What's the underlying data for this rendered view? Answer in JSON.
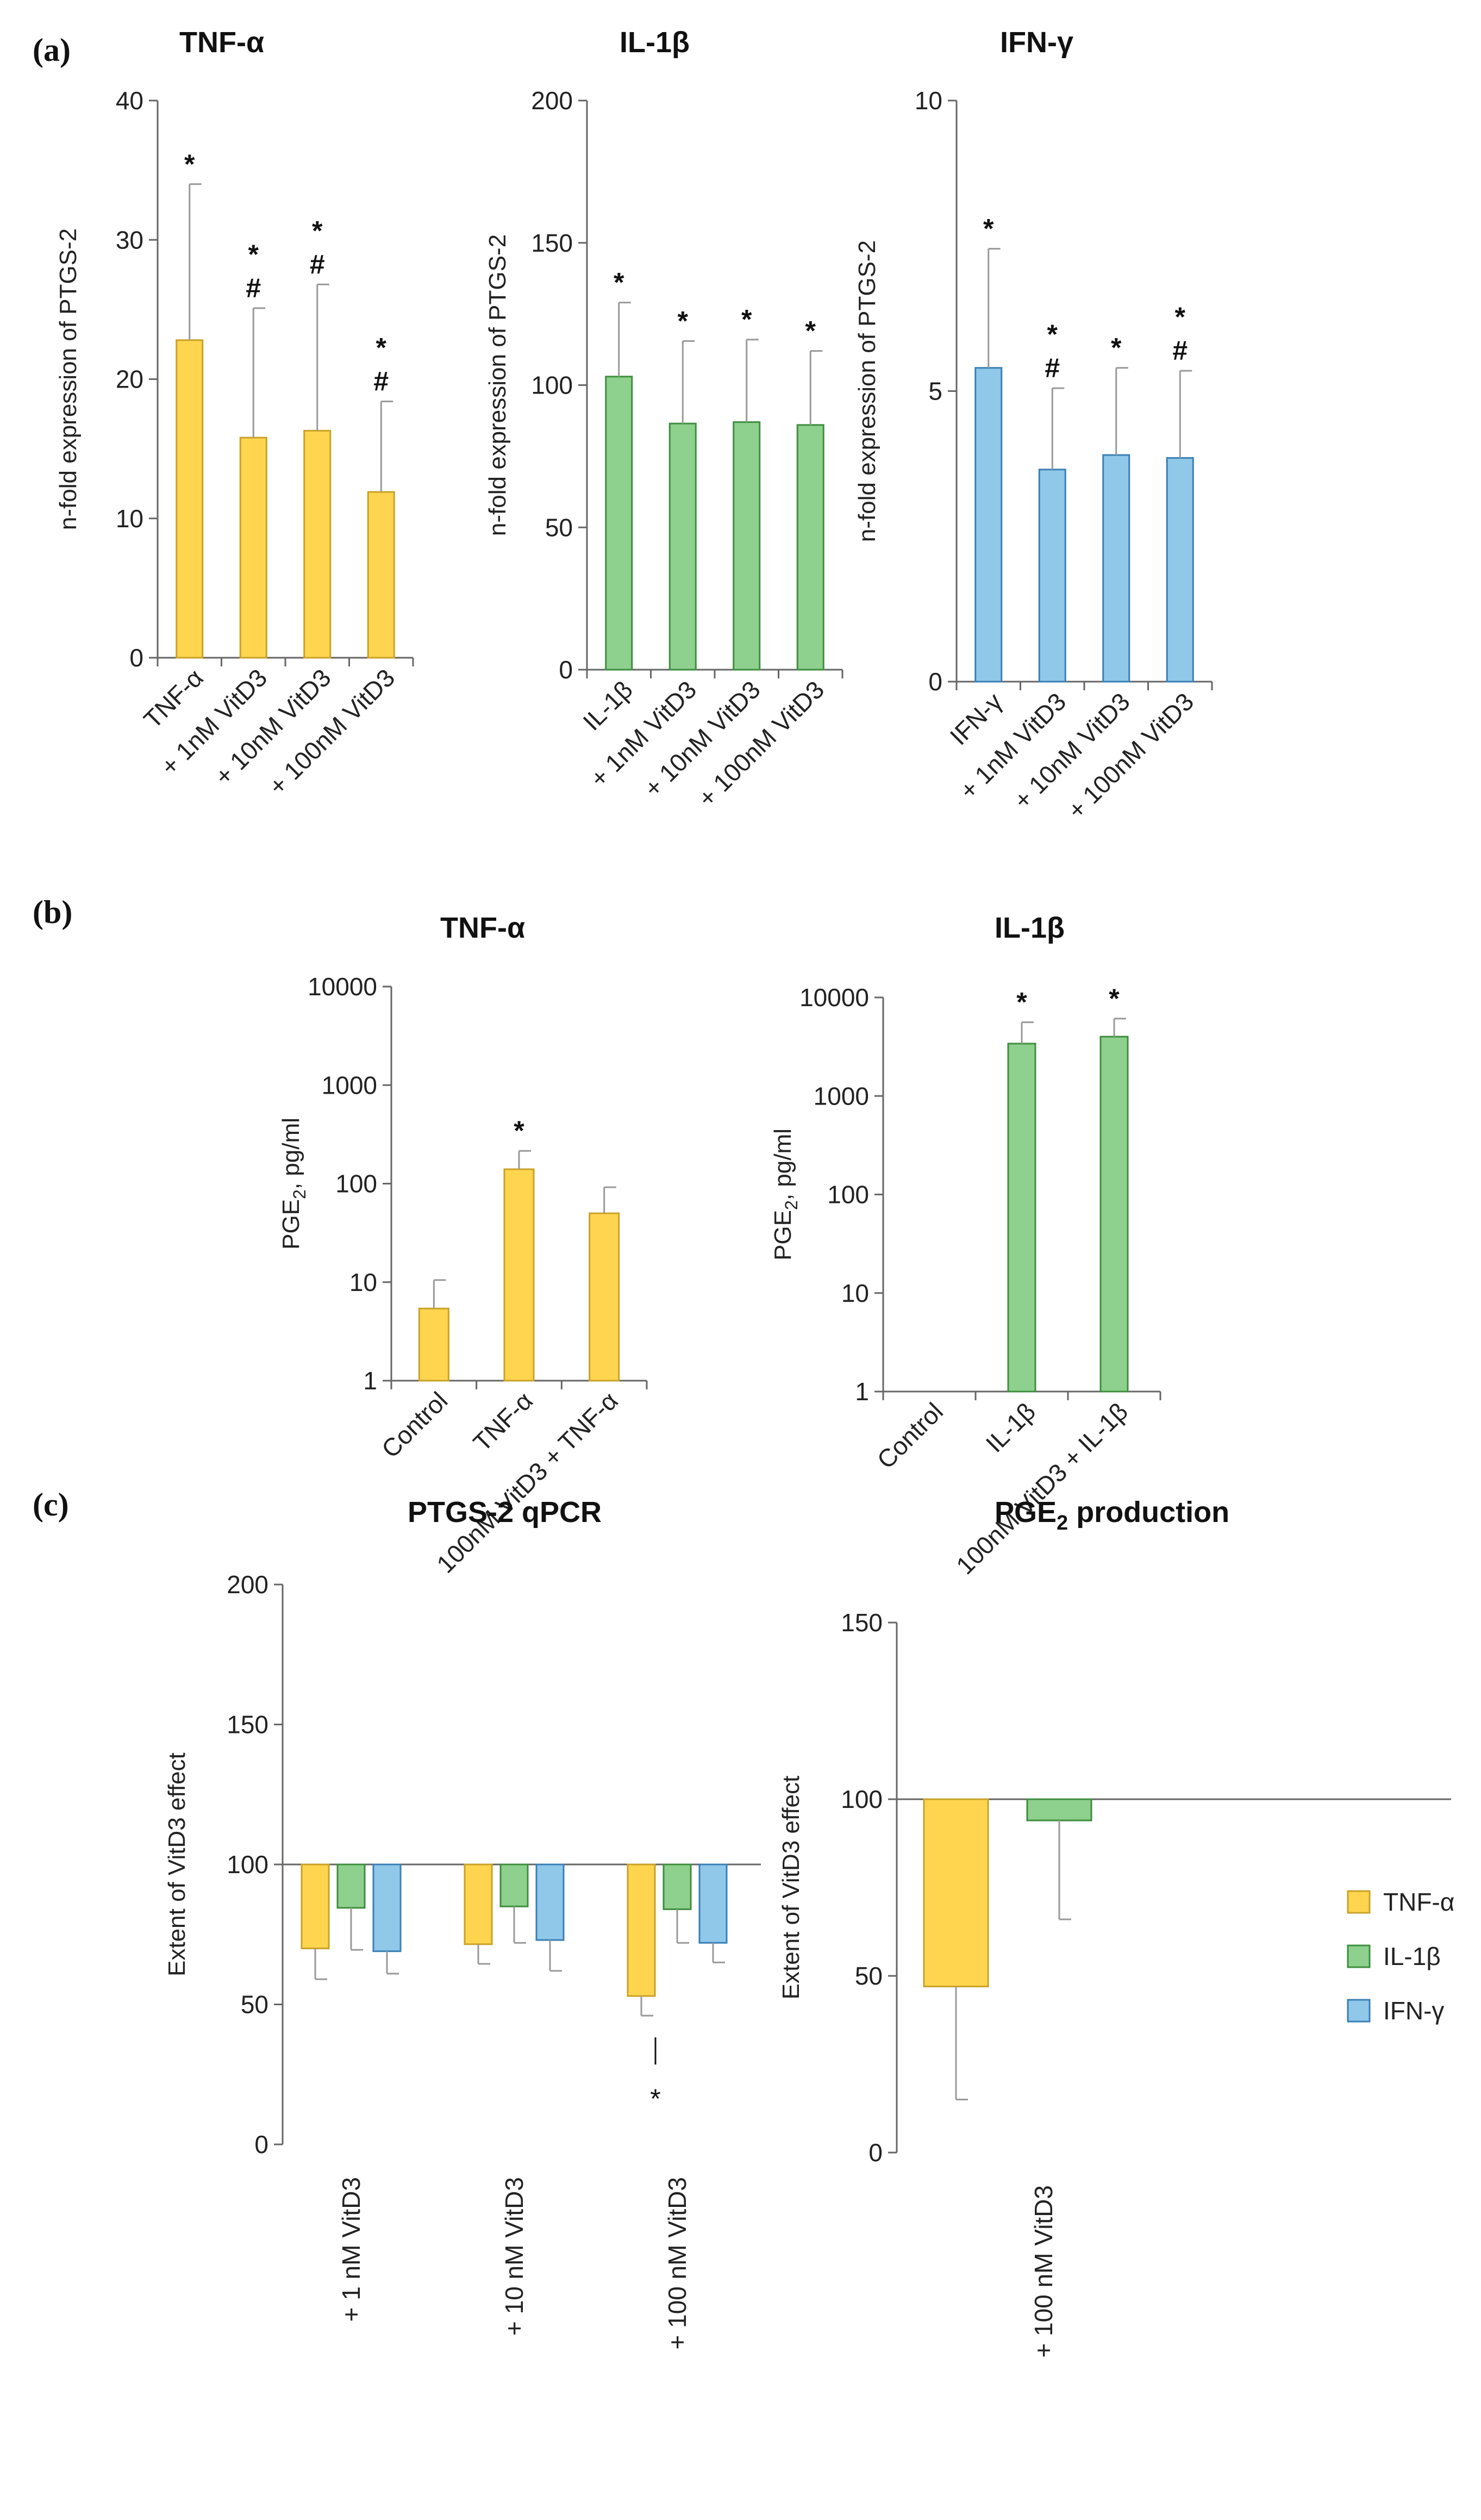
{
  "colors": {
    "tnf": "#FFD54F",
    "tnf_edge": "#C9A227",
    "il1b": "#8ED08E",
    "il1b_edge": "#3E8E3E",
    "ifn": "#90C8EA",
    "ifn_edge": "#3A7FB5"
  },
  "legend": [
    {
      "label": "TNF-α",
      "color": "#FFD54F",
      "edge": "#C9A227"
    },
    {
      "label": "IL-1β",
      "color": "#8ED08E",
      "edge": "#3E8E3E"
    },
    {
      "label": "IFN-γ",
      "color": "#90C8EA",
      "edge": "#3A7FB5"
    }
  ],
  "chart_data": [
    {
      "id": "a1",
      "panel": "(a)",
      "type": "bar",
      "title": "TNF-α",
      "ylabel": "n-fold expression of PTGS-2",
      "ylim": [
        0,
        40
      ],
      "yticks": [
        0,
        10,
        20,
        30,
        40
      ],
      "categories": [
        "TNF-α",
        "+ 1nM VitD3",
        "+ 10nM VitD3",
        "+ 100nM VitD3"
      ],
      "values": [
        22.8,
        15.8,
        16.3,
        11.9
      ],
      "errors": [
        11.2,
        9.3,
        10.5,
        6.5
      ],
      "annotations": [
        "*",
        "*\n#",
        "*\n#",
        "*\n#"
      ],
      "color": "tnf"
    },
    {
      "id": "a2",
      "type": "bar",
      "title": "IL-1β",
      "ylabel": "n-fold expression of PTGS-2",
      "ylim": [
        0,
        200
      ],
      "yticks": [
        0,
        50,
        100,
        150,
        200
      ],
      "categories": [
        "IL-1β",
        "+ 1nM VitD3",
        "+ 10nM VitD3",
        "+ 100nM VitD3"
      ],
      "values": [
        103,
        86.5,
        87,
        86
      ],
      "errors": [
        26,
        29,
        29,
        26
      ],
      "annotations": [
        "*",
        "*",
        "*",
        "*"
      ],
      "color": "il1b"
    },
    {
      "id": "a3",
      "type": "bar",
      "title": "IFN-γ",
      "ylabel": "n-fold expression of PTGS-2",
      "ylim": [
        0,
        10
      ],
      "yticks": [
        0,
        5,
        10
      ],
      "categories": [
        "IFN-γ",
        "+ 1nM VitD3",
        "+ 10nM VitD3",
        "+ 100nM VitD3"
      ],
      "values": [
        5.4,
        3.65,
        3.9,
        3.85
      ],
      "errors": [
        2.05,
        1.4,
        1.5,
        1.5
      ],
      "annotations": [
        "*",
        "*\n#",
        "*",
        "*\n#"
      ],
      "color": "ifn"
    },
    {
      "id": "b1",
      "panel": "(b)",
      "type": "bar",
      "yscale": "log",
      "title": "TNF-α",
      "ylabel": "PGE",
      "ylabel_sub": "2",
      "ylabel_suffix": ", pg/ml",
      "ylim": [
        1,
        10000
      ],
      "yticks": [
        1,
        10,
        100,
        1000,
        10000
      ],
      "categories": [
        "Control",
        "TNF-α",
        "100nM VitD3 + TNF-α"
      ],
      "values": [
        5.4,
        140,
        50
      ],
      "errors_upper": [
        10.5,
        215,
        92
      ],
      "annotations": [
        "",
        "*",
        ""
      ],
      "color": "tnf"
    },
    {
      "id": "b2",
      "type": "bar",
      "yscale": "log",
      "title": "IL-1β",
      "ylabel": "PGE",
      "ylabel_sub": "2",
      "ylabel_suffix": ", pg/ml",
      "ylim": [
        1,
        10000
      ],
      "yticks": [
        1,
        10,
        100,
        1000,
        10000
      ],
      "categories": [
        "Control",
        "IL-1β",
        "100nM VitD3 + IL-1β"
      ],
      "values": [
        null,
        3400,
        4000
      ],
      "errors_upper": [
        null,
        5600,
        6100
      ],
      "annotations": [
        "",
        "*",
        "*"
      ],
      "color": "il1b"
    },
    {
      "id": "c1",
      "panel": "(c)",
      "type": "bar",
      "baseline": 100,
      "title": "PTGS-2 qPCR",
      "ylabel": "Extent of VitD3 effect",
      "ylim": [
        0,
        200
      ],
      "yticks": [
        0,
        50,
        100,
        150,
        200
      ],
      "categories": [
        "+ 1 nM VitD3",
        "+ 10 nM VitD3",
        "+ 100 nM VitD3"
      ],
      "series": [
        {
          "name": "TNF-α",
          "color": "tnf",
          "values": [
            70,
            71.5,
            53
          ],
          "errors": [
            11,
            7,
            7
          ]
        },
        {
          "name": "IL-1β",
          "color": "il1b",
          "values": [
            84.5,
            85,
            84
          ],
          "errors": [
            15,
            13,
            12
          ]
        },
        {
          "name": "IFN-γ",
          "color": "ifn",
          "values": [
            69,
            73,
            72
          ],
          "errors": [
            8,
            11,
            7
          ]
        }
      ],
      "significance": {
        "group": 2,
        "series": 0,
        "label": "*"
      }
    },
    {
      "id": "c2",
      "type": "bar",
      "baseline": 100,
      "title": "PGE",
      "title_sub": "2",
      "title_suffix": " production",
      "ylabel": "Extent of VitD3 effect",
      "ylim": [
        0,
        150
      ],
      "yticks": [
        0,
        50,
        100,
        150
      ],
      "categories": [
        "+ 100 nM VitD3"
      ],
      "series": [
        {
          "name": "TNF-α",
          "color": "tnf",
          "values": [
            47
          ],
          "errors": [
            32
          ]
        },
        {
          "name": "IL-1β",
          "color": "il1b",
          "values": [
            94
          ],
          "errors": [
            28
          ]
        }
      ]
    }
  ]
}
